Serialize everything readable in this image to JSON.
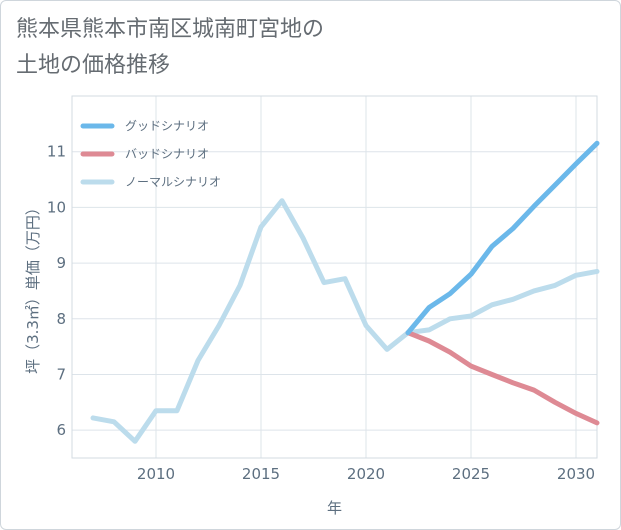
{
  "title": {
    "line1": "熊本県熊本市南区城南町宮地の",
    "line2": "土地の価格推移"
  },
  "chart_data": {
    "type": "line",
    "xlabel": "年",
    "ylabel": "坪（3.3㎡）単価（万円）",
    "xlim": [
      2006,
      2031
    ],
    "ylim": [
      5.5,
      12
    ],
    "x_ticks": [
      2010,
      2015,
      2020,
      2025,
      2030
    ],
    "y_ticks": [
      6,
      7,
      8,
      9,
      10,
      11
    ],
    "grid": true,
    "legend_position": "top-left",
    "series": [
      {
        "name": "グッドシナリオ",
        "color": "#6bb8ea",
        "x": [
          2022,
          2023,
          2024,
          2025,
          2026,
          2027,
          2028,
          2029,
          2030,
          2031
        ],
        "y": [
          7.75,
          8.2,
          8.45,
          8.8,
          9.3,
          9.62,
          10.02,
          10.4,
          10.78,
          11.15
        ]
      },
      {
        "name": "バッドシナリオ",
        "color": "#de8a94",
        "x": [
          2022,
          2023,
          2024,
          2025,
          2026,
          2027,
          2028,
          2029,
          2030,
          2031
        ],
        "y": [
          7.75,
          7.6,
          7.4,
          7.15,
          7.0,
          6.85,
          6.72,
          6.5,
          6.3,
          6.13
        ]
      },
      {
        "name": "ノーマルシナリオ",
        "color": "#bcdcec",
        "x": [
          2007,
          2008,
          2009,
          2010,
          2011,
          2012,
          2013,
          2014,
          2015,
          2016,
          2017,
          2018,
          2019,
          2020,
          2021,
          2022,
          2023,
          2024,
          2025,
          2026,
          2027,
          2028,
          2029,
          2030,
          2031
        ],
        "y": [
          6.22,
          6.15,
          5.8,
          6.35,
          6.35,
          7.25,
          7.88,
          8.6,
          9.65,
          10.12,
          9.45,
          8.65,
          8.72,
          7.88,
          7.45,
          7.75,
          7.8,
          8.0,
          8.05,
          8.25,
          8.35,
          8.5,
          8.6,
          8.78,
          8.85
        ]
      }
    ]
  }
}
